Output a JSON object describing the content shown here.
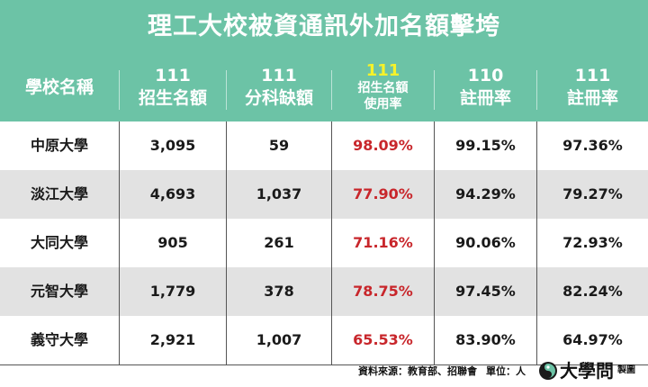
{
  "title": "理工大校被資通訊外加名額擊垮",
  "headers": [
    {
      "l1": "學校名稱",
      "l2": ""
    },
    {
      "l1": "111",
      "l2": "招生名額"
    },
    {
      "l1": "111",
      "l2": "分科缺額"
    },
    {
      "l1": "111",
      "l2": "招生名額",
      "l3": "使用率"
    },
    {
      "l1": "110",
      "l2": "註冊率"
    },
    {
      "l1": "111",
      "l2": "註冊率"
    }
  ],
  "rows": [
    {
      "name": "中原大學",
      "quota": "3,095",
      "vacancy": "59",
      "usage": "98.09%",
      "reg110": "99.15%",
      "reg111": "97.36%"
    },
    {
      "name": "淡江大學",
      "quota": "4,693",
      "vacancy": "1,037",
      "usage": "77.90%",
      "reg110": "94.29%",
      "reg111": "79.27%"
    },
    {
      "name": "大同大學",
      "quota": "905",
      "vacancy": "261",
      "usage": "71.16%",
      "reg110": "90.06%",
      "reg111": "72.93%"
    },
    {
      "name": "元智大學",
      "quota": "1,779",
      "vacancy": "378",
      "usage": "78.75%",
      "reg110": "97.45%",
      "reg111": "82.24%"
    },
    {
      "name": "義守大學",
      "quota": "2,921",
      "vacancy": "1,007",
      "usage": "65.53%",
      "reg110": "83.90%",
      "reg111": "64.97%"
    }
  ],
  "footer": {
    "source": "資料來源：教育部、招聯會",
    "unit": "單位：人",
    "brand": "大學問",
    "brand_suffix": "製圖"
  },
  "colors": {
    "header_bg": "#6cc3a6",
    "highlight_text": "#f6f22a",
    "usage_text": "#c8262b",
    "alt_row_bg": "#e2e2e2"
  }
}
